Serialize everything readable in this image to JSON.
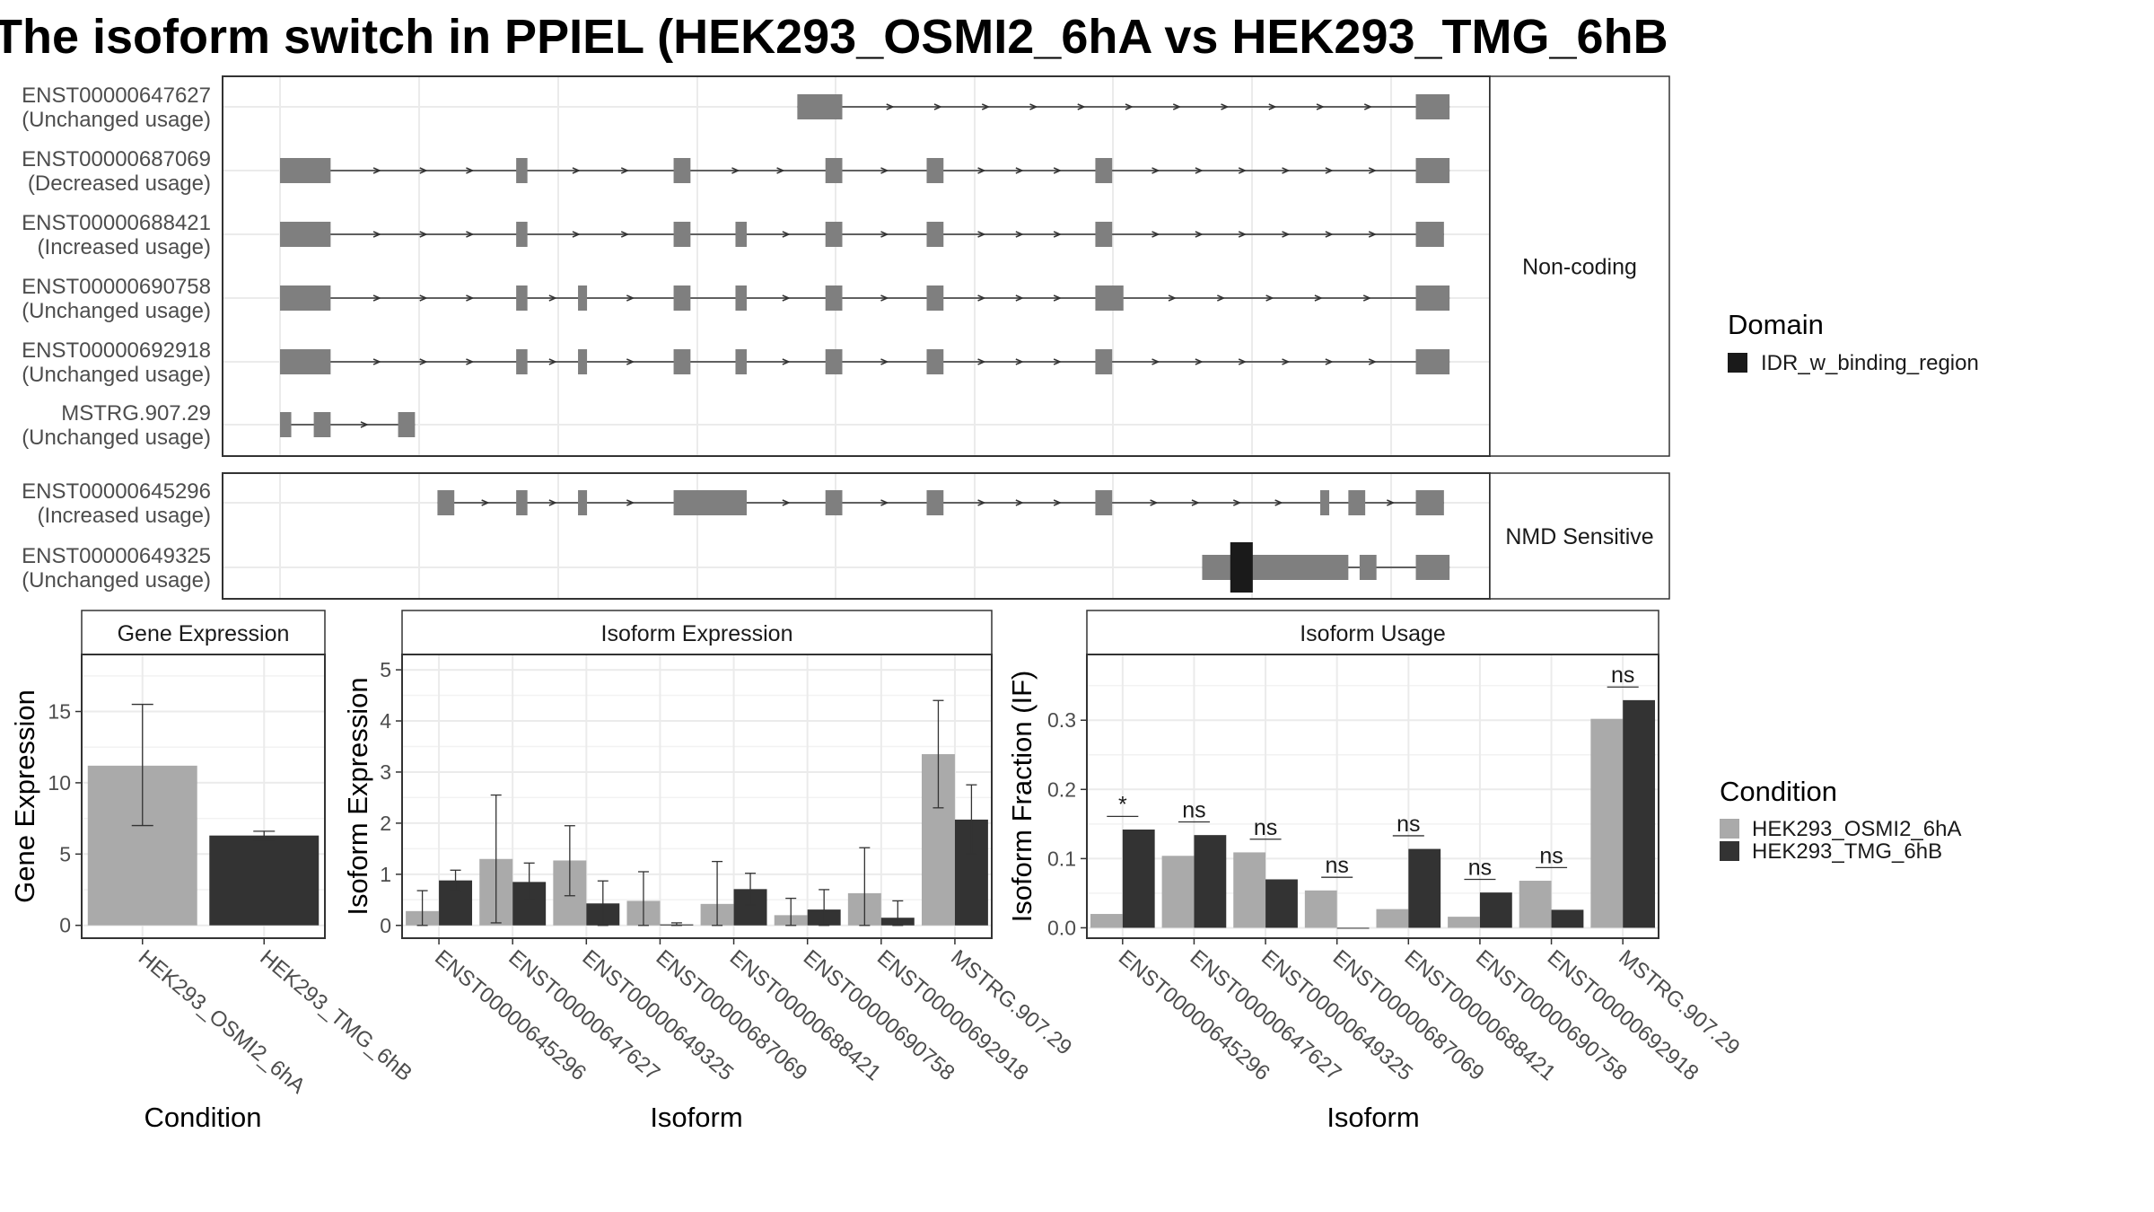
{
  "title": "The isoform switch in PPIEL (HEK293_OSMI2_6hA vs HEK293_TMG_6hB",
  "colors": {
    "exon": "#7f7f7f",
    "domain": "#1a1a1a",
    "cond_a": "#aaaaaa",
    "cond_b": "#333333",
    "grid": "#ebebeb",
    "strip_bg": "#ffffff"
  },
  "structure": {
    "x_range": [
      0,
      100
    ],
    "panels": [
      {
        "strip": "Non-coding",
        "transcripts": [
          {
            "id": "ENST00000647627",
            "usage": "(Unchanged usage)",
            "exons": [
              [
                46,
                50
              ],
              [
                101,
                104
              ]
            ]
          },
          {
            "id": "ENST00000687069",
            "usage": "(Decreased usage)",
            "exons": [
              [
                0,
                4.5
              ],
              [
                21,
                22
              ],
              [
                35,
                36.5
              ],
              [
                48.5,
                50
              ],
              [
                57.5,
                59
              ],
              [
                72.5,
                74
              ],
              [
                101,
                104
              ]
            ]
          },
          {
            "id": "ENST00000688421",
            "usage": "(Increased usage)",
            "exons": [
              [
                0,
                4.5
              ],
              [
                21,
                22
              ],
              [
                35,
                36.5
              ],
              [
                40.5,
                41.5
              ],
              [
                48.5,
                50
              ],
              [
                57.5,
                59
              ],
              [
                72.5,
                74
              ],
              [
                101,
                103.5
              ]
            ]
          },
          {
            "id": "ENST00000690758",
            "usage": "(Unchanged usage)",
            "exons": [
              [
                0,
                4.5
              ],
              [
                21,
                22
              ],
              [
                26.5,
                27.3
              ],
              [
                35,
                36.5
              ],
              [
                40.5,
                41.5
              ],
              [
                48.5,
                50
              ],
              [
                57.5,
                59
              ],
              [
                72.5,
                75
              ],
              [
                101,
                104
              ]
            ]
          },
          {
            "id": "ENST00000692918",
            "usage": "(Unchanged usage)",
            "exons": [
              [
                0,
                4.5
              ],
              [
                21,
                22
              ],
              [
                26.5,
                27.3
              ],
              [
                35,
                36.5
              ],
              [
                40.5,
                41.5
              ],
              [
                48.5,
                50
              ],
              [
                57.5,
                59
              ],
              [
                72.5,
                74
              ],
              [
                101,
                104
              ]
            ]
          },
          {
            "id": "MSTRG.907.29",
            "usage": "(Unchanged usage)",
            "exons": [
              [
                0,
                1
              ],
              [
                3,
                4.5
              ],
              [
                10.5,
                12
              ]
            ]
          }
        ]
      },
      {
        "strip": "NMD Sensitive",
        "transcripts": [
          {
            "id": "ENST00000645296",
            "usage": "(Increased usage)",
            "exons": [
              [
                14,
                15.5
              ],
              [
                21,
                22
              ],
              [
                26.5,
                27.3
              ],
              [
                35,
                41.5
              ],
              [
                48.5,
                50
              ],
              [
                57.5,
                59
              ],
              [
                72.5,
                74
              ],
              [
                92.5,
                93.3
              ],
              [
                95,
                96.5
              ],
              [
                101,
                103.5
              ]
            ]
          },
          {
            "id": "ENST00000649325",
            "usage": "(Unchanged usage)",
            "exons": [
              [
                82,
                95
              ],
              [
                96,
                97.5
              ],
              [
                101,
                104
              ]
            ],
            "domain": [
              84.5,
              86.5
            ]
          }
        ]
      }
    ],
    "legend": {
      "title": "Domain",
      "items": [
        "IDR_w_binding_region"
      ]
    }
  },
  "chart_data": [
    {
      "type": "bar",
      "title": "Gene Expression",
      "xlabel": "Condition",
      "ylabel": "Gene Expression",
      "categories": [
        "HEK293_OSMI2_6hA",
        "HEK293_TMG_6hB"
      ],
      "values": [
        11.2,
        6.3
      ],
      "error_low": [
        7.0,
        6.0
      ],
      "error_high": [
        15.5,
        6.6
      ],
      "ylim": [
        -0.9,
        19
      ],
      "yticks": [
        0,
        5,
        10,
        15
      ]
    },
    {
      "type": "bar",
      "title": "Isoform Expression",
      "xlabel": "Isoform",
      "ylabel": "Isoform Expression",
      "categories": [
        "ENST00000645296",
        "ENST00000647627",
        "ENST00000649325",
        "ENST00000687069",
        "ENST00000688421",
        "ENST00000690758",
        "ENST00000692918",
        "MSTRG.907.29"
      ],
      "series": [
        {
          "name": "HEK293_OSMI2_6hA",
          "values": [
            0.28,
            1.3,
            1.27,
            0.48,
            0.42,
            0.2,
            0.63,
            3.35
          ],
          "error_low": [
            0.0,
            0.05,
            0.58,
            0.0,
            0.0,
            0.0,
            0.0,
            2.3
          ],
          "error_high": [
            0.68,
            2.55,
            1.95,
            1.05,
            1.25,
            0.53,
            1.52,
            4.4
          ]
        },
        {
          "name": "HEK293_TMG_6hB",
          "values": [
            0.88,
            0.85,
            0.43,
            0.02,
            0.71,
            0.31,
            0.15,
            2.07
          ],
          "error_low": [
            0.68,
            0.5,
            0.0,
            0.0,
            0.4,
            0.0,
            0.0,
            1.4
          ],
          "error_high": [
            1.08,
            1.22,
            0.87,
            0.05,
            1.02,
            0.7,
            0.48,
            2.75
          ]
        }
      ],
      "ylim": [
        -0.25,
        5.3
      ],
      "yticks": [
        0,
        1,
        2,
        3,
        4,
        5
      ]
    },
    {
      "type": "bar",
      "title": "Isoform Usage",
      "xlabel": "Isoform",
      "ylabel": "Isoform Fraction (IF)",
      "categories": [
        "ENST00000645296",
        "ENST00000647627",
        "ENST00000649325",
        "ENST00000687069",
        "ENST00000688421",
        "ENST00000690758",
        "ENST00000692918",
        "MSTRG.907.29"
      ],
      "series": [
        {
          "name": "HEK293_OSMI2_6hA",
          "values": [
            0.02,
            0.104,
            0.109,
            0.054,
            0.027,
            0.016,
            0.068,
            0.302
          ]
        },
        {
          "name": "HEK293_TMG_6hB",
          "values": [
            0.142,
            0.134,
            0.07,
            0.0,
            0.114,
            0.051,
            0.026,
            0.329
          ]
        }
      ],
      "significance": [
        "*",
        "ns",
        "ns",
        "ns",
        "ns",
        "ns",
        "ns",
        "ns"
      ],
      "ylim": [
        -0.015,
        0.395
      ],
      "yticks": [
        0.0,
        0.1,
        0.2,
        0.3
      ],
      "ytick_labels": [
        "0.0",
        "0.1",
        "0.2",
        "0.3"
      ]
    }
  ],
  "condition_legend": {
    "title": "Condition",
    "items": [
      "HEK293_OSMI2_6hA",
      "HEK293_TMG_6hB"
    ]
  }
}
